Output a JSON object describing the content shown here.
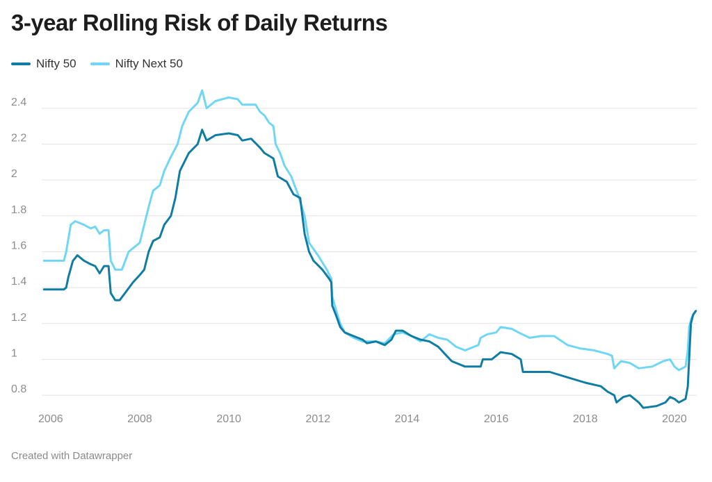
{
  "title": "3-year Rolling Risk of Daily Returns",
  "footer": "Created with Datawrapper",
  "colors": {
    "nifty50": "#0f7ca3",
    "niftynext50": "#6fd6f5",
    "grid": "#e2e2e2",
    "tick": "#8c8c8c"
  },
  "chart_data": {
    "type": "line",
    "title": "3-year Rolling Risk of Daily Returns",
    "xlabel": "",
    "ylabel": "",
    "xlim": [
      2005.8,
      2020.5
    ],
    "ylim": [
      0.75,
      2.5
    ],
    "x_ticks": [
      2006,
      2008,
      2010,
      2012,
      2014,
      2016,
      2018,
      2020
    ],
    "x_tick_labels": [
      "2006",
      "2008",
      "2010",
      "2012",
      "2014",
      "2016",
      "2018",
      "2020"
    ],
    "y_ticks": [
      0.8,
      1,
      1.2,
      1.4,
      1.6,
      1.8,
      2,
      2.2,
      2.4
    ],
    "y_tick_labels": [
      "0.8",
      "1",
      "1.2",
      "1.4",
      "1.6",
      "1.8",
      "2",
      "2.2",
      "2.4"
    ],
    "grid": "horizontal",
    "legend": "top-left",
    "series": [
      {
        "name": "Nifty 50",
        "color": "#0f7ca3",
        "points": [
          [
            2005.85,
            1.39
          ],
          [
            2006.3,
            1.39
          ],
          [
            2006.35,
            1.4
          ],
          [
            2006.4,
            1.46
          ],
          [
            2006.5,
            1.55
          ],
          [
            2006.6,
            1.58
          ],
          [
            2006.75,
            1.55
          ],
          [
            2006.9,
            1.53
          ],
          [
            2007.0,
            1.52
          ],
          [
            2007.1,
            1.48
          ],
          [
            2007.2,
            1.52
          ],
          [
            2007.3,
            1.52
          ],
          [
            2007.35,
            1.37
          ],
          [
            2007.45,
            1.33
          ],
          [
            2007.55,
            1.33
          ],
          [
            2007.7,
            1.38
          ],
          [
            2007.85,
            1.43
          ],
          [
            2008.0,
            1.47
          ],
          [
            2008.1,
            1.5
          ],
          [
            2008.2,
            1.6
          ],
          [
            2008.3,
            1.66
          ],
          [
            2008.45,
            1.68
          ],
          [
            2008.55,
            1.75
          ],
          [
            2008.7,
            1.8
          ],
          [
            2008.8,
            1.9
          ],
          [
            2008.9,
            2.05
          ],
          [
            2009.1,
            2.15
          ],
          [
            2009.3,
            2.2
          ],
          [
            2009.4,
            2.28
          ],
          [
            2009.5,
            2.22
          ],
          [
            2009.7,
            2.25
          ],
          [
            2010.0,
            2.26
          ],
          [
            2010.2,
            2.25
          ],
          [
            2010.3,
            2.22
          ],
          [
            2010.5,
            2.23
          ],
          [
            2010.7,
            2.18
          ],
          [
            2010.8,
            2.15
          ],
          [
            2011.0,
            2.12
          ],
          [
            2011.1,
            2.02
          ],
          [
            2011.3,
            1.99
          ],
          [
            2011.45,
            1.92
          ],
          [
            2011.6,
            1.9
          ],
          [
            2011.7,
            1.7
          ],
          [
            2011.8,
            1.6
          ],
          [
            2011.9,
            1.55
          ],
          [
            2012.1,
            1.5
          ],
          [
            2012.25,
            1.45
          ],
          [
            2012.3,
            1.43
          ],
          [
            2012.32,
            1.3
          ],
          [
            2012.4,
            1.25
          ],
          [
            2012.5,
            1.18
          ],
          [
            2012.6,
            1.15
          ],
          [
            2012.8,
            1.13
          ],
          [
            2013.0,
            1.11
          ],
          [
            2013.1,
            1.09
          ],
          [
            2013.3,
            1.1
          ],
          [
            2013.5,
            1.08
          ],
          [
            2013.65,
            1.11
          ],
          [
            2013.75,
            1.16
          ],
          [
            2013.9,
            1.16
          ],
          [
            2014.1,
            1.13
          ],
          [
            2014.3,
            1.11
          ],
          [
            2014.5,
            1.1
          ],
          [
            2014.7,
            1.07
          ],
          [
            2014.85,
            1.03
          ],
          [
            2015.0,
            0.99
          ],
          [
            2015.3,
            0.96
          ],
          [
            2015.5,
            0.96
          ],
          [
            2015.65,
            0.96
          ],
          [
            2015.7,
            1.0
          ],
          [
            2015.9,
            1.0
          ],
          [
            2016.0,
            1.02
          ],
          [
            2016.1,
            1.04
          ],
          [
            2016.35,
            1.03
          ],
          [
            2016.55,
            1.0
          ],
          [
            2016.6,
            0.93
          ],
          [
            2017.2,
            0.93
          ],
          [
            2017.6,
            0.9
          ],
          [
            2018.0,
            0.87
          ],
          [
            2018.35,
            0.85
          ],
          [
            2018.5,
            0.82
          ],
          [
            2018.65,
            0.8
          ],
          [
            2018.7,
            0.76
          ],
          [
            2018.85,
            0.79
          ],
          [
            2019.0,
            0.8
          ],
          [
            2019.2,
            0.76
          ],
          [
            2019.3,
            0.73
          ],
          [
            2019.6,
            0.74
          ],
          [
            2019.8,
            0.76
          ],
          [
            2019.9,
            0.79
          ],
          [
            2020.0,
            0.78
          ],
          [
            2020.1,
            0.76
          ],
          [
            2020.25,
            0.78
          ],
          [
            2020.3,
            0.85
          ],
          [
            2020.33,
            1.0
          ],
          [
            2020.37,
            1.2
          ],
          [
            2020.42,
            1.25
          ],
          [
            2020.48,
            1.27
          ]
        ]
      },
      {
        "name": "Nifty Next 50",
        "color": "#6fd6f5",
        "points": [
          [
            2005.85,
            1.55
          ],
          [
            2006.3,
            1.55
          ],
          [
            2006.35,
            1.6
          ],
          [
            2006.45,
            1.75
          ],
          [
            2006.55,
            1.77
          ],
          [
            2006.75,
            1.75
          ],
          [
            2006.9,
            1.73
          ],
          [
            2007.0,
            1.74
          ],
          [
            2007.1,
            1.7
          ],
          [
            2007.2,
            1.72
          ],
          [
            2007.3,
            1.72
          ],
          [
            2007.35,
            1.55
          ],
          [
            2007.45,
            1.5
          ],
          [
            2007.6,
            1.5
          ],
          [
            2007.75,
            1.6
          ],
          [
            2007.9,
            1.63
          ],
          [
            2008.0,
            1.65
          ],
          [
            2008.1,
            1.75
          ],
          [
            2008.2,
            1.85
          ],
          [
            2008.3,
            1.94
          ],
          [
            2008.45,
            1.97
          ],
          [
            2008.55,
            2.05
          ],
          [
            2008.7,
            2.13
          ],
          [
            2008.85,
            2.2
          ],
          [
            2008.95,
            2.3
          ],
          [
            2009.1,
            2.38
          ],
          [
            2009.3,
            2.43
          ],
          [
            2009.4,
            2.5
          ],
          [
            2009.5,
            2.4
          ],
          [
            2009.7,
            2.44
          ],
          [
            2010.0,
            2.46
          ],
          [
            2010.2,
            2.45
          ],
          [
            2010.3,
            2.42
          ],
          [
            2010.6,
            2.42
          ],
          [
            2010.7,
            2.38
          ],
          [
            2010.8,
            2.36
          ],
          [
            2010.9,
            2.32
          ],
          [
            2011.0,
            2.3
          ],
          [
            2011.05,
            2.2
          ],
          [
            2011.15,
            2.15
          ],
          [
            2011.25,
            2.08
          ],
          [
            2011.4,
            2.02
          ],
          [
            2011.55,
            1.92
          ],
          [
            2011.7,
            1.8
          ],
          [
            2011.8,
            1.65
          ],
          [
            2012.0,
            1.58
          ],
          [
            2012.2,
            1.5
          ],
          [
            2012.3,
            1.45
          ],
          [
            2012.32,
            1.35
          ],
          [
            2012.4,
            1.28
          ],
          [
            2012.5,
            1.2
          ],
          [
            2012.6,
            1.15
          ],
          [
            2012.8,
            1.12
          ],
          [
            2013.0,
            1.1
          ],
          [
            2013.3,
            1.1
          ],
          [
            2013.5,
            1.09
          ],
          [
            2013.7,
            1.14
          ],
          [
            2013.9,
            1.15
          ],
          [
            2014.1,
            1.13
          ],
          [
            2014.3,
            1.1
          ],
          [
            2014.5,
            1.14
          ],
          [
            2014.7,
            1.12
          ],
          [
            2014.9,
            1.11
          ],
          [
            2015.1,
            1.07
          ],
          [
            2015.3,
            1.05
          ],
          [
            2015.6,
            1.08
          ],
          [
            2015.65,
            1.12
          ],
          [
            2015.8,
            1.14
          ],
          [
            2016.0,
            1.15
          ],
          [
            2016.1,
            1.18
          ],
          [
            2016.35,
            1.17
          ],
          [
            2016.5,
            1.15
          ],
          [
            2016.75,
            1.12
          ],
          [
            2017.0,
            1.13
          ],
          [
            2017.3,
            1.13
          ],
          [
            2017.6,
            1.08
          ],
          [
            2017.9,
            1.06
          ],
          [
            2018.2,
            1.05
          ],
          [
            2018.5,
            1.03
          ],
          [
            2018.6,
            1.02
          ],
          [
            2018.65,
            0.95
          ],
          [
            2018.8,
            0.99
          ],
          [
            2019.0,
            0.98
          ],
          [
            2019.2,
            0.95
          ],
          [
            2019.5,
            0.96
          ],
          [
            2019.75,
            0.99
          ],
          [
            2019.9,
            1.0
          ],
          [
            2020.0,
            0.96
          ],
          [
            2020.1,
            0.94
          ],
          [
            2020.25,
            0.96
          ],
          [
            2020.3,
            1.05
          ],
          [
            2020.33,
            1.18
          ],
          [
            2020.38,
            1.23
          ],
          [
            2020.48,
            1.27
          ]
        ]
      }
    ]
  }
}
